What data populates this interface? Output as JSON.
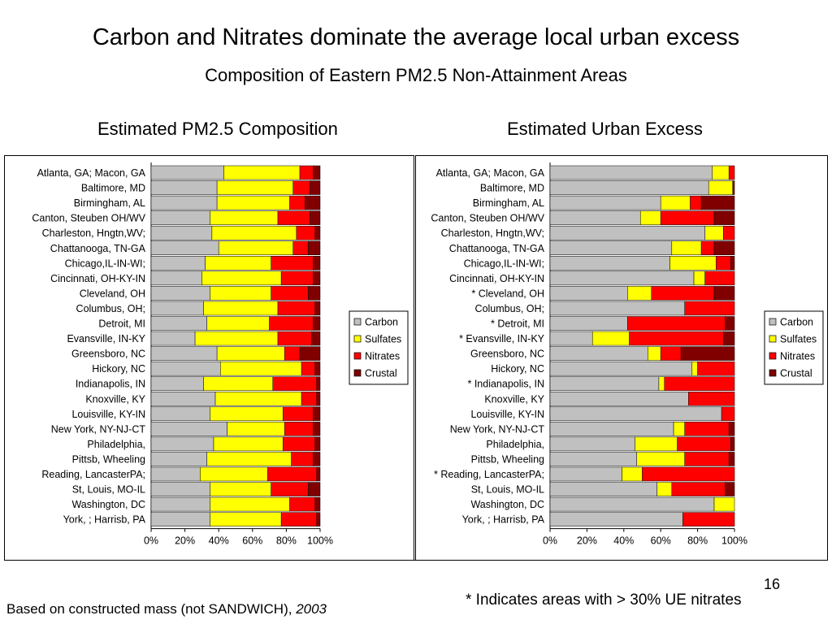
{
  "slide": {
    "title": "Carbon and Nitrates dominate the average local urban excess",
    "subtitle": "Composition of Eastern PM2.5 Non-Attainment Areas",
    "page_number": "16",
    "footnote_left": "Based on constructed mass (not SANDWICH), ",
    "footnote_left_year": "2003",
    "footnote_right": "* Indicates areas with > 30% UE nitrates"
  },
  "colors": {
    "Carbon": "#c0c0c0",
    "Sulfates": "#ffff00",
    "Nitrates": "#ff0000",
    "Crustal": "#800000"
  },
  "chart_data": [
    {
      "type": "bar",
      "orientation": "horizontal",
      "stacked": "percent",
      "title": "Estimated PM2.5 Composition",
      "xlim": [
        0,
        100
      ],
      "xticks": [
        "0%",
        "20%",
        "40%",
        "60%",
        "80%",
        "100%"
      ],
      "legend": "right",
      "categories": [
        "Atlanta, GA; Macon, GA",
        "Baltimore, MD",
        "Birmingham, AL",
        "Canton, Steuben OH/WV",
        "Charleston, Hngtn,WV;",
        "Chattanooga, TN-GA",
        "Chicago,IL-IN-WI;",
        "Cincinnati, OH-KY-IN",
        "Cleveland, OH",
        "Columbus, OH;",
        "Detroit, MI",
        "Evansville, IN-KY",
        "Greensboro, NC",
        "Hickory, NC",
        "Indianapolis, IN",
        "Knoxville, KY",
        "Louisville, KY-IN",
        "New York, NY-NJ-CT",
        "Philadelphia,",
        "Pittsb, Wheeling",
        "Reading,  LancasterPA;",
        "St, Louis, MO-IL",
        "Washington, DC",
        "York, ; Harrisb, PA"
      ],
      "series": [
        {
          "name": "Carbon",
          "values": [
            43,
            39,
            39,
            35,
            36,
            40,
            32,
            30,
            35,
            31,
            33,
            26,
            39,
            41,
            31,
            38,
            35,
            45,
            37,
            33,
            29,
            35,
            35,
            35
          ]
        },
        {
          "name": "Sulfates",
          "values": [
            45,
            45,
            43,
            40,
            50,
            44,
            39,
            47,
            36,
            44,
            37,
            49,
            40,
            48,
            41,
            51,
            43,
            34,
            41,
            50,
            40,
            36,
            47,
            42
          ]
        },
        {
          "name": "Nitrates",
          "values": [
            8,
            10,
            9,
            19,
            11,
            9,
            25,
            19,
            22,
            22,
            26,
            20,
            9,
            8,
            26,
            9,
            18,
            17,
            19,
            13,
            29,
            22,
            15,
            21
          ]
        },
        {
          "name": "Crustal",
          "values": [
            4,
            6,
            9,
            6,
            3,
            7,
            4,
            4,
            7,
            3,
            4,
            5,
            12,
            3,
            2,
            2,
            4,
            4,
            3,
            4,
            2,
            7,
            3,
            2
          ]
        }
      ]
    },
    {
      "type": "bar",
      "orientation": "horizontal",
      "stacked": "percent",
      "title": "Estimated Urban Excess",
      "xlim": [
        0,
        100
      ],
      "xticks": [
        "0%",
        "20%",
        "40%",
        "60%",
        "80%",
        "100%"
      ],
      "legend": "right",
      "categories": [
        "Atlanta, GA; Macon, GA",
        "Baltimore, MD",
        "Birmingham, AL",
        "Canton, Steuben OH/WV",
        "Charleston, Hngtn,WV;",
        "Chattanooga, TN-GA",
        "Chicago,IL-IN-WI;",
        "Cincinnati, OH-KY-IN",
        "* Cleveland, OH",
        "Columbus, OH;",
        "* Detroit, MI",
        "* Evansville, IN-KY",
        "Greensboro, NC",
        "Hickory, NC",
        "* Indianapolis, IN",
        "Knoxville, KY",
        "Louisville, KY-IN",
        "New York, NY-NJ-CT",
        "Philadelphia,",
        "Pittsb, Wheeling",
        "* Reading,  LancasterPA;",
        "St, Louis, MO-IL",
        "Washington, DC",
        "York, ; Harrisb, PA"
      ],
      "series": [
        {
          "name": "Carbon",
          "values": [
            88,
            86,
            60,
            49,
            84,
            66,
            65,
            78,
            42,
            73,
            42,
            23,
            53,
            77,
            59,
            75,
            93,
            67,
            46,
            47,
            39,
            58,
            89,
            72
          ]
        },
        {
          "name": "Sulfates",
          "values": [
            9,
            13,
            16,
            11,
            10,
            16,
            25,
            6,
            13,
            0,
            0,
            20,
            7,
            3,
            3,
            0,
            0,
            6,
            23,
            26,
            11,
            8,
            11,
            0
          ]
        },
        {
          "name": "Nitrates",
          "values": [
            3,
            0,
            6,
            29,
            6,
            7,
            8,
            16,
            34,
            27,
            53,
            51,
            11,
            20,
            38,
            25,
            7,
            24,
            29,
            24,
            50,
            29,
            0,
            28
          ]
        },
        {
          "name": "Crustal",
          "values": [
            0,
            1,
            18,
            11,
            0,
            11,
            2,
            0,
            11,
            0,
            5,
            6,
            29,
            0,
            0,
            0,
            0,
            3,
            2,
            3,
            0,
            5,
            0,
            0
          ]
        }
      ]
    }
  ]
}
